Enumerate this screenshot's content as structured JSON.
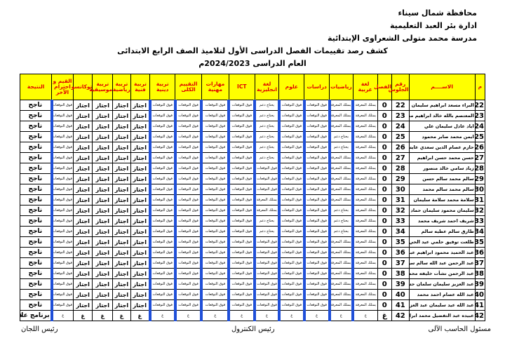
{
  "header": {
    "governorate": "محافظة شمال سيناء",
    "administration": "ادارة بئر العبد التعليمية",
    "school": "مدرسة محمد متولى الشعراوى الإبتدائية",
    "title": "كشف رصد تقييمات الفصل الدراسى الأول لتلاميذ الصف الرابع الابتدائى",
    "year": "العام الدراسى 2024/2023م"
  },
  "table": {
    "columns": [
      "م",
      "الاســــم",
      "رقم الجلوس",
      "الفصل",
      "لغة عربية",
      "رياضيات",
      "دراسات",
      "علوم",
      "لغة انجليزية",
      "ICT",
      "مهارات مهنية",
      "التقييم الكلى",
      "تربية دينية",
      "تربية فنية",
      "تربية رياضية",
      "تربية موسيقية",
      "توكاتسو",
      "القيم و احترام الآخر",
      "النتيجة"
    ],
    "rows": [
      [
        22,
        "البراء مسعد ابراهيم سليمان",
        22,
        0,
        "يمتلك المعرفة",
        "يمتلك المعرفة",
        "فوق التوقعات",
        "فوق التوقعات",
        "يحتاج دعم",
        "فوق التوقعات",
        "فوق التوقعات",
        "فوق التوقعات",
        "فوق التوقعات",
        "اجتاز",
        "اجتاز",
        "اجتاز",
        "اجتاز",
        "فوق التوقعات",
        "ناجح"
      ],
      [
        23,
        "المعتصم بالله خالد ابراهيم محمد",
        23,
        0,
        "يمتلك المعرفة",
        "يمتلك المعرفة",
        "فوق التوقعات",
        "فوق التوقعات",
        "يحتاج دعم",
        "فوق التوقعات",
        "فوق التوقعات",
        "فوق التوقعات",
        "فوق التوقعات",
        "اجتاز",
        "اجتاز",
        "اجتاز",
        "اجتاز",
        "فوق التوقعات",
        "ناجح"
      ],
      [
        24,
        "اياد عادل سليمان علي",
        24,
        0,
        "يمتلك المعرفة",
        "يمتلك المعرفة",
        "فوق التوقعات",
        "فوق التوقعات",
        "يحتاج دعم",
        "فوق التوقعات",
        "فوق التوقعات",
        "فوق التوقعات",
        "فوق التوقعات",
        "اجتاز",
        "اجتاز",
        "اجتاز",
        "اجتاز",
        "فوق التوقعات",
        "ناجح"
      ],
      [
        25,
        "ايمن محمد صابر محمود",
        25,
        0,
        "يمتلك المعرفة",
        "يحتاج دعم",
        "فوق التوقعات",
        "فوق التوقعات",
        "يحتاج دعم",
        "فوق التوقعات",
        "فوق التوقعات",
        "فوق التوقعات",
        "فوق التوقعات",
        "اجتاز",
        "اجتاز",
        "اجتاز",
        "اجتاز",
        "فوق التوقعات",
        "ناجح"
      ],
      [
        26,
        "حازم عصام الدين سعدي عايش",
        26,
        0,
        "يمتلك المعرفة",
        "يحتاج دعم",
        "فوق التوقعات",
        "فوق التوقعات",
        "يحتاج دعم",
        "فوق التوقعات",
        "فوق التوقعات",
        "فوق التوقعات",
        "فوق التوقعات",
        "اجتاز",
        "اجتاز",
        "اجتاز",
        "اجتاز",
        "فوق التوقعات",
        "ناجح"
      ],
      [
        27,
        "حسن محمد حسن ابراهيم",
        27,
        0,
        "يمتلك المعرفة",
        "يمتلك المعرفة",
        "فوق التوقعات",
        "فوق التوقعات",
        "يحتاج دعم",
        "فوق التوقعات",
        "فوق التوقعات",
        "فوق التوقعات",
        "فوق التوقعات",
        "اجتاز",
        "اجتاز",
        "اجتاز",
        "اجتاز",
        "فوق التوقعات",
        "ناجح"
      ],
      [
        28,
        "زياد سامي خالد منصور",
        28,
        0,
        "يمتلك المعرفة",
        "يمتلك المعرفة",
        "فوق التوقعات",
        "فوق التوقعات",
        "فوق التوقعات",
        "فوق التوقعات",
        "فوق التوقعات",
        "فوق التوقعات",
        "فوق التوقعات",
        "اجتاز",
        "اجتاز",
        "اجتاز",
        "اجتاز",
        "فوق التوقعات",
        "ناجح"
      ],
      [
        29,
        "سالم محمد سالم حسن",
        29,
        0,
        "يمتلك المعرفة",
        "يمتلك المعرفة",
        "فوق التوقعات",
        "فوق التوقعات",
        "فوق التوقعات",
        "فوق التوقعات",
        "فوق التوقعات",
        "فوق التوقعات",
        "فوق التوقعات",
        "اجتاز",
        "اجتاز",
        "اجتاز",
        "اجتاز",
        "فوق التوقعات",
        "ناجح"
      ],
      [
        30,
        "سالم محمد سالم محمد",
        30,
        0,
        "يمتلك المعرفة",
        "يمتلك المعرفة",
        "فوق التوقعات",
        "فوق التوقعات",
        "فوق التوقعات",
        "فوق التوقعات",
        "فوق التوقعات",
        "فوق التوقعات",
        "فوق التوقعات",
        "اجتاز",
        "اجتاز",
        "اجتاز",
        "اجتاز",
        "فوق التوقعات",
        "ناجح"
      ],
      [
        31,
        "سلامة محمد سلامة سليمان",
        31,
        0,
        "يمتلك المعرفة",
        "يمتلك المعرفة",
        "فوق التوقعات",
        "فوق التوقعات",
        "يمتلك المعرفة",
        "فوق التوقعات",
        "فوق التوقعات",
        "فوق التوقعات",
        "فوق التوقعات",
        "اجتاز",
        "اجتاز",
        "اجتاز",
        "اجتاز",
        "فوق التوقعات",
        "ناجح"
      ],
      [
        32,
        "سليمان محمود سليمان حماد",
        32,
        0,
        "يمتلك المعرفة",
        "يحتاج دعم",
        "فوق التوقعات",
        "فوق التوقعات",
        "يمتلك المعرفة",
        "فوق التوقعات",
        "فوق التوقعات",
        "فوق التوقعات",
        "فوق التوقعات",
        "اجتاز",
        "اجتاز",
        "اجتاز",
        "اجتاز",
        "فوق التوقعات",
        "ناجح"
      ],
      [
        33,
        "شريف احمد شريف محمد",
        33,
        0,
        "يمتلك المعرفة",
        "يحتاج دعم",
        "فوق التوقعات",
        "فوق التوقعات",
        "يحتاج دعم",
        "فوق التوقعات",
        "فوق التوقعات",
        "فوق التوقعات",
        "فوق التوقعات",
        "اجتاز",
        "اجتاز",
        "اجتاز",
        "اجتاز",
        "فوق التوقعات",
        "ناجح"
      ],
      [
        34,
        "طارق سالم عطيه سالم",
        34,
        0,
        "يمتلك المعرفة",
        "يحتاج دعم",
        "فوق التوقعات",
        "فوق التوقعات",
        "يحتاج دعم",
        "فوق التوقعات",
        "فوق التوقعات",
        "فوق التوقعات",
        "فوق التوقعات",
        "اجتاز",
        "اجتاز",
        "اجتاز",
        "اجتاز",
        "فوق التوقعات",
        "ناجح"
      ],
      [
        35,
        "طلعت توفيق حلمي عيد الحي",
        35,
        0,
        "يمتلك المعرفة",
        "يمتلك المعرفة",
        "فوق التوقعات",
        "فوق التوقعات",
        "فوق التوقعات",
        "فوق التوقعات",
        "فوق التوقعات",
        "فوق التوقعات",
        "فوق التوقعات",
        "اجتاز",
        "اجتاز",
        "اجتاز",
        "اجتاز",
        "فوق التوقعات",
        "ناجح"
      ],
      [
        36,
        "عبد الحميد محمود ابراهيم عبد الحميد",
        36,
        0,
        "يمتلك المعرفة",
        "يمتلك المعرفة",
        "فوق التوقعات",
        "فوق التوقعات",
        "فوق التوقعات",
        "فوق التوقعات",
        "فوق التوقعات",
        "فوق التوقعات",
        "فوق التوقعات",
        "اجتاز",
        "اجتاز",
        "اجتاز",
        "اجتاز",
        "فوق التوقعات",
        "ناجح"
      ],
      [
        37,
        "عبد الرحمن عبد الله سالم سويلم",
        37,
        0,
        "يمتلك المعرفة",
        "يمتلك المعرفة",
        "فوق التوقعات",
        "فوق التوقعات",
        "فوق التوقعات",
        "فوق التوقعات",
        "فوق التوقعات",
        "فوق التوقعات",
        "فوق التوقعات",
        "اجتاز",
        "اجتاز",
        "اجتاز",
        "اجتاز",
        "فوق التوقعات",
        "ناجح"
      ],
      [
        38,
        "عبد الرحمن نشأت خليفه محمد",
        38,
        0,
        "يمتلك المعرفة",
        "يمتلك المعرفة",
        "فوق التوقعات",
        "فوق التوقعات",
        "فوق التوقعات",
        "فوق التوقعات",
        "فوق التوقعات",
        "فوق التوقعات",
        "فوق التوقعات",
        "اجتاز",
        "اجتاز",
        "اجتاز",
        "اجتاز",
        "فوق التوقعات",
        "ناجح"
      ],
      [
        39,
        "عبد العزيز سليمان سلمان حسن حسين",
        39,
        0,
        "يمتلك المعرفة",
        "يمتلك المعرفة",
        "فوق التوقعات",
        "فوق التوقعات",
        "فوق التوقعات",
        "فوق التوقعات",
        "فوق التوقعات",
        "فوق التوقعات",
        "فوق التوقعات",
        "اجتاز",
        "اجتاز",
        "اجتاز",
        "اجتاز",
        "فوق التوقعات",
        "ناجح"
      ],
      [
        40,
        "عبد الله عصام احمد محمد",
        40,
        0,
        "يمتلك المعرفة",
        "يمتلك المعرفة",
        "فوق التوقعات",
        "فوق التوقعات",
        "فوق التوقعات",
        "فوق التوقعات",
        "فوق التوقعات",
        "فوق التوقعات",
        "فوق التوقعات",
        "اجتاز",
        "اجتاز",
        "اجتاز",
        "اجتاز",
        "فوق التوقعات",
        "ناجح"
      ],
      [
        41,
        "عبد الله عيد سليمان عبد العزيز",
        41,
        0,
        "يمتلك المعرفة",
        "يمتلك المعرفة",
        "فوق التوقعات",
        "فوق التوقعات",
        "فوق التوقعات",
        "فوق التوقعات",
        "فوق التوقعات",
        "فوق التوقعات",
        "فوق التوقعات",
        "اجتاز",
        "اجتاز",
        "اجتاز",
        "اجتاز",
        "فوق التوقعات",
        "ناجح"
      ],
      [
        42,
        "عبيده عبد التفضيل محمد ابراهيم",
        42,
        "غ",
        "غ",
        "غ",
        "غ",
        "غ",
        "غ",
        "غ",
        "غ",
        "غ",
        "غ",
        "غ",
        "غ",
        "غ",
        "غ",
        "غ",
        "برنامج علاجي"
      ]
    ]
  },
  "footer": [
    "مسئول الحاسب الآلى",
    "رئيس الكنترول",
    "رئيس اللجان"
  ]
}
